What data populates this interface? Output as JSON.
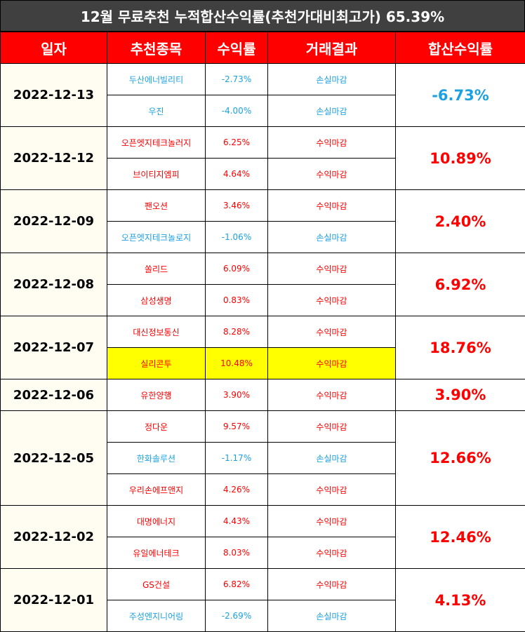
{
  "title": "12월 무료추천 누적합산수익률(추천가대비최고가) 65.39%",
  "headers": [
    "일자",
    "추천종목",
    "수익률",
    "거래결과",
    "합산수익률"
  ],
  "colors": {
    "profit": "#ff0000",
    "loss": "#1ba1e2",
    "highlight": "#ffff00"
  },
  "groups": [
    {
      "date": "2022-12-13",
      "total": "-6.73%",
      "tone": "loss",
      "items": [
        {
          "stock": "두산에너빌리티",
          "yield": "-2.73%",
          "result": "손실마감",
          "tone": "loss"
        },
        {
          "stock": "우진",
          "yield": "-4.00%",
          "result": "손실마감",
          "tone": "loss"
        }
      ]
    },
    {
      "date": "2022-12-12",
      "total": "10.89%",
      "tone": "profit",
      "items": [
        {
          "stock": "오픈엣지테크놀러지",
          "yield": "6.25%",
          "result": "수익마감",
          "tone": "profit"
        },
        {
          "stock": "브이티지엠피",
          "yield": "4.64%",
          "result": "수익마감",
          "tone": "profit"
        }
      ]
    },
    {
      "date": "2022-12-09",
      "total": "2.40%",
      "tone": "profit",
      "items": [
        {
          "stock": "팬오션",
          "yield": "3.46%",
          "result": "수익마감",
          "tone": "profit"
        },
        {
          "stock": "오픈엣지테크놀로지",
          "yield": "-1.06%",
          "result": "손실마감",
          "tone": "loss"
        }
      ]
    },
    {
      "date": "2022-12-08",
      "total": "6.92%",
      "tone": "profit",
      "items": [
        {
          "stock": "쏠리드",
          "yield": "6.09%",
          "result": "수익마감",
          "tone": "profit"
        },
        {
          "stock": "삼성생명",
          "yield": "0.83%",
          "result": "수익마감",
          "tone": "profit"
        }
      ]
    },
    {
      "date": "2022-12-07",
      "total": "18.76%",
      "tone": "profit",
      "items": [
        {
          "stock": "대신정보통신",
          "yield": "8.28%",
          "result": "수익마감",
          "tone": "profit"
        },
        {
          "stock": "실리콘투",
          "yield": "10.48%",
          "result": "수익마감",
          "tone": "profit",
          "highlight": true
        }
      ]
    },
    {
      "date": "2022-12-06",
      "total": "3.90%",
      "tone": "profit",
      "items": [
        {
          "stock": "유한양행",
          "yield": "3.90%",
          "result": "수익마감",
          "tone": "profit"
        }
      ]
    },
    {
      "date": "2022-12-05",
      "total": "12.66%",
      "tone": "profit",
      "items": [
        {
          "stock": "정다운",
          "yield": "9.57%",
          "result": "수익마감",
          "tone": "profit"
        },
        {
          "stock": "한화솔루션",
          "yield": "-1.17%",
          "result": "손실마감",
          "tone": "loss"
        },
        {
          "stock": "우리손에프앤지",
          "yield": "4.26%",
          "result": "수익마감",
          "tone": "profit"
        }
      ]
    },
    {
      "date": "2022-12-02",
      "total": "12.46%",
      "tone": "profit",
      "items": [
        {
          "stock": "대명에너지",
          "yield": "4.43%",
          "result": "수익마감",
          "tone": "profit"
        },
        {
          "stock": "유일에너테크",
          "yield": "8.03%",
          "result": "수익마감",
          "tone": "profit"
        }
      ]
    },
    {
      "date": "2022-12-01",
      "total": "4.13%",
      "tone": "profit",
      "items": [
        {
          "stock": "GS건설",
          "yield": "6.82%",
          "result": "수익마감",
          "tone": "profit"
        },
        {
          "stock": "주성엔지니어링",
          "yield": "-2.69%",
          "result": "손실마감",
          "tone": "loss"
        }
      ]
    }
  ]
}
